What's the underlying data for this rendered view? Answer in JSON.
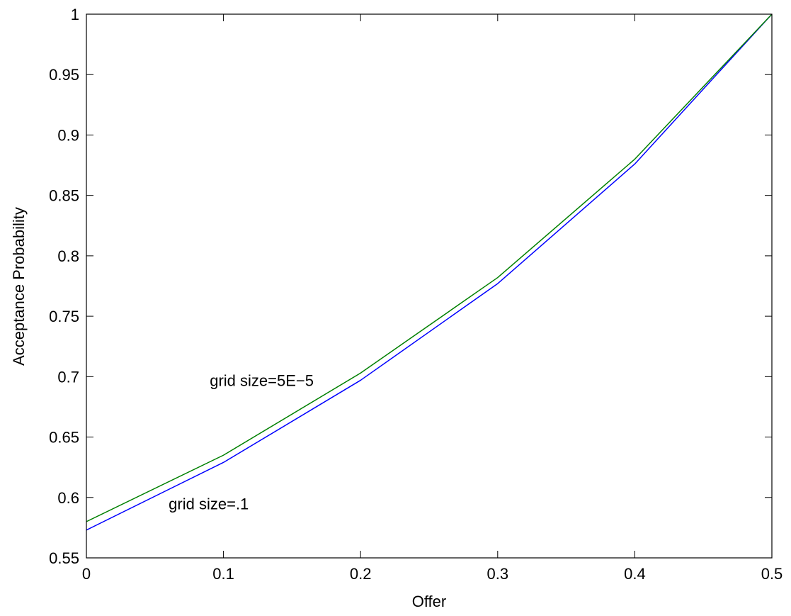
{
  "chart_data": {
    "type": "line",
    "title": "",
    "xlabel": "Offer",
    "ylabel": "Acceptance Probability",
    "xlim": [
      0,
      0.5
    ],
    "ylim": [
      0.55,
      1
    ],
    "grid": false,
    "x_ticks": [
      {
        "value": 0,
        "label": "0"
      },
      {
        "value": 0.1,
        "label": "0.1"
      },
      {
        "value": 0.2,
        "label": "0.2"
      },
      {
        "value": 0.3,
        "label": "0.3"
      },
      {
        "value": 0.4,
        "label": "0.4"
      },
      {
        "value": 0.5,
        "label": "0.5"
      }
    ],
    "y_ticks": [
      {
        "value": 0.55,
        "label": "0.55"
      },
      {
        "value": 0.6,
        "label": "0.6"
      },
      {
        "value": 0.65,
        "label": "0.65"
      },
      {
        "value": 0.7,
        "label": "0.7"
      },
      {
        "value": 0.75,
        "label": "0.75"
      },
      {
        "value": 0.8,
        "label": "0.8"
      },
      {
        "value": 0.85,
        "label": "0.85"
      },
      {
        "value": 0.9,
        "label": "0.9"
      },
      {
        "value": 0.95,
        "label": "0.95"
      },
      {
        "value": 1,
        "label": "1"
      }
    ],
    "x": [
      0,
      0.1,
      0.2,
      0.3,
      0.4,
      0.5
    ],
    "series": [
      {
        "color": "#0000ff",
        "values": [
          0.573,
          0.629,
          0.697,
          0.777,
          0.876,
          1.0
        ]
      },
      {
        "color": "#008000",
        "values": [
          0.58,
          0.635,
          0.703,
          0.782,
          0.88,
          1.0
        ]
      }
    ],
    "annotations": [
      {
        "text": "grid size=5E−5",
        "x": 0.09,
        "y": 0.697
      },
      {
        "text": "grid size=.1",
        "x": 0.06,
        "y": 0.595
      }
    ]
  }
}
